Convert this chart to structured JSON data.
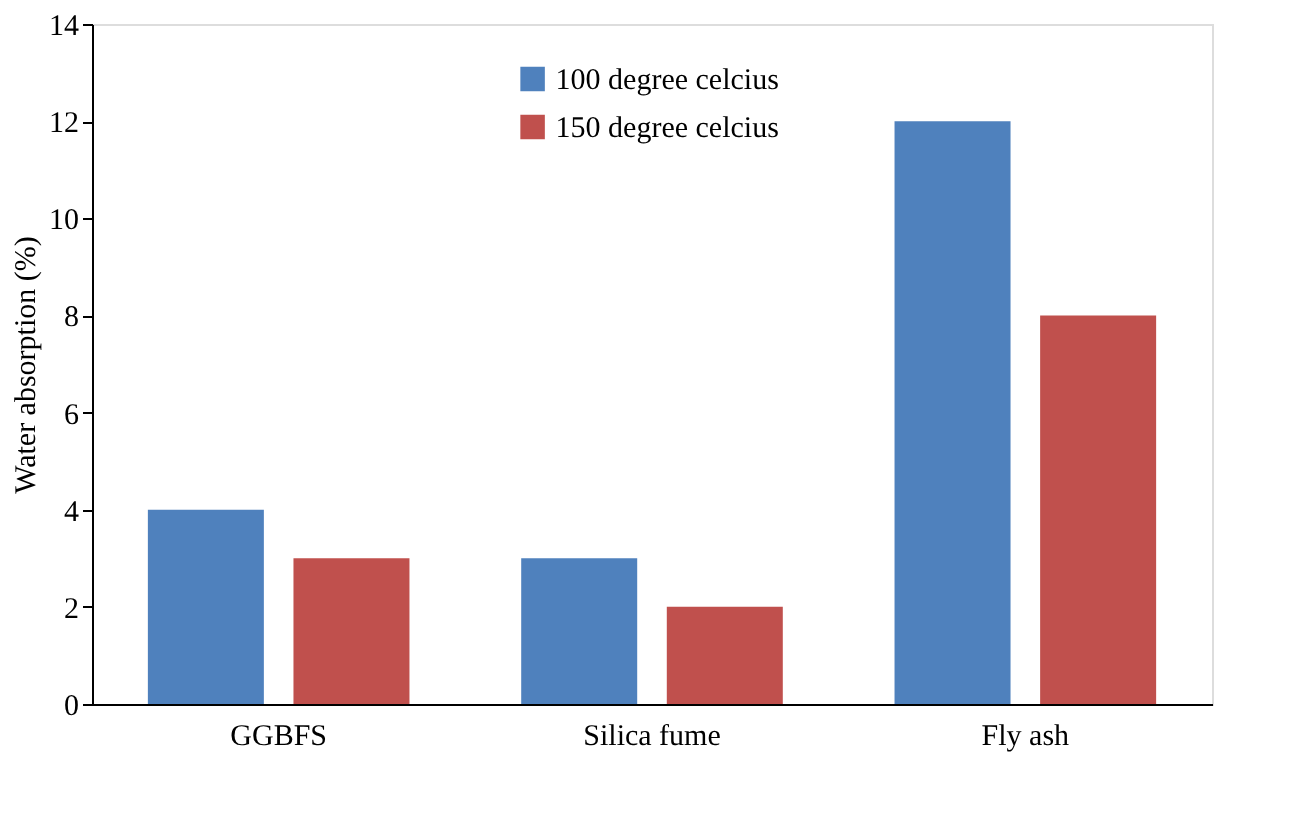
{
  "chart_data": {
    "type": "bar",
    "categories": [
      "GGBFS",
      "Silica fume",
      "Fly ash"
    ],
    "series": [
      {
        "name": "100 degree celcius",
        "color": "#4f81bd",
        "values": [
          4,
          3,
          12
        ]
      },
      {
        "name": "150 degree celcius",
        "color": "#c0504d",
        "values": [
          3,
          2,
          8
        ]
      }
    ],
    "ylabel": "Water absorption (%)",
    "ylim": [
      0,
      14
    ],
    "yticks": [
      0,
      2,
      4,
      6,
      8,
      10,
      12,
      14
    ],
    "grid": false,
    "legend": "top"
  }
}
